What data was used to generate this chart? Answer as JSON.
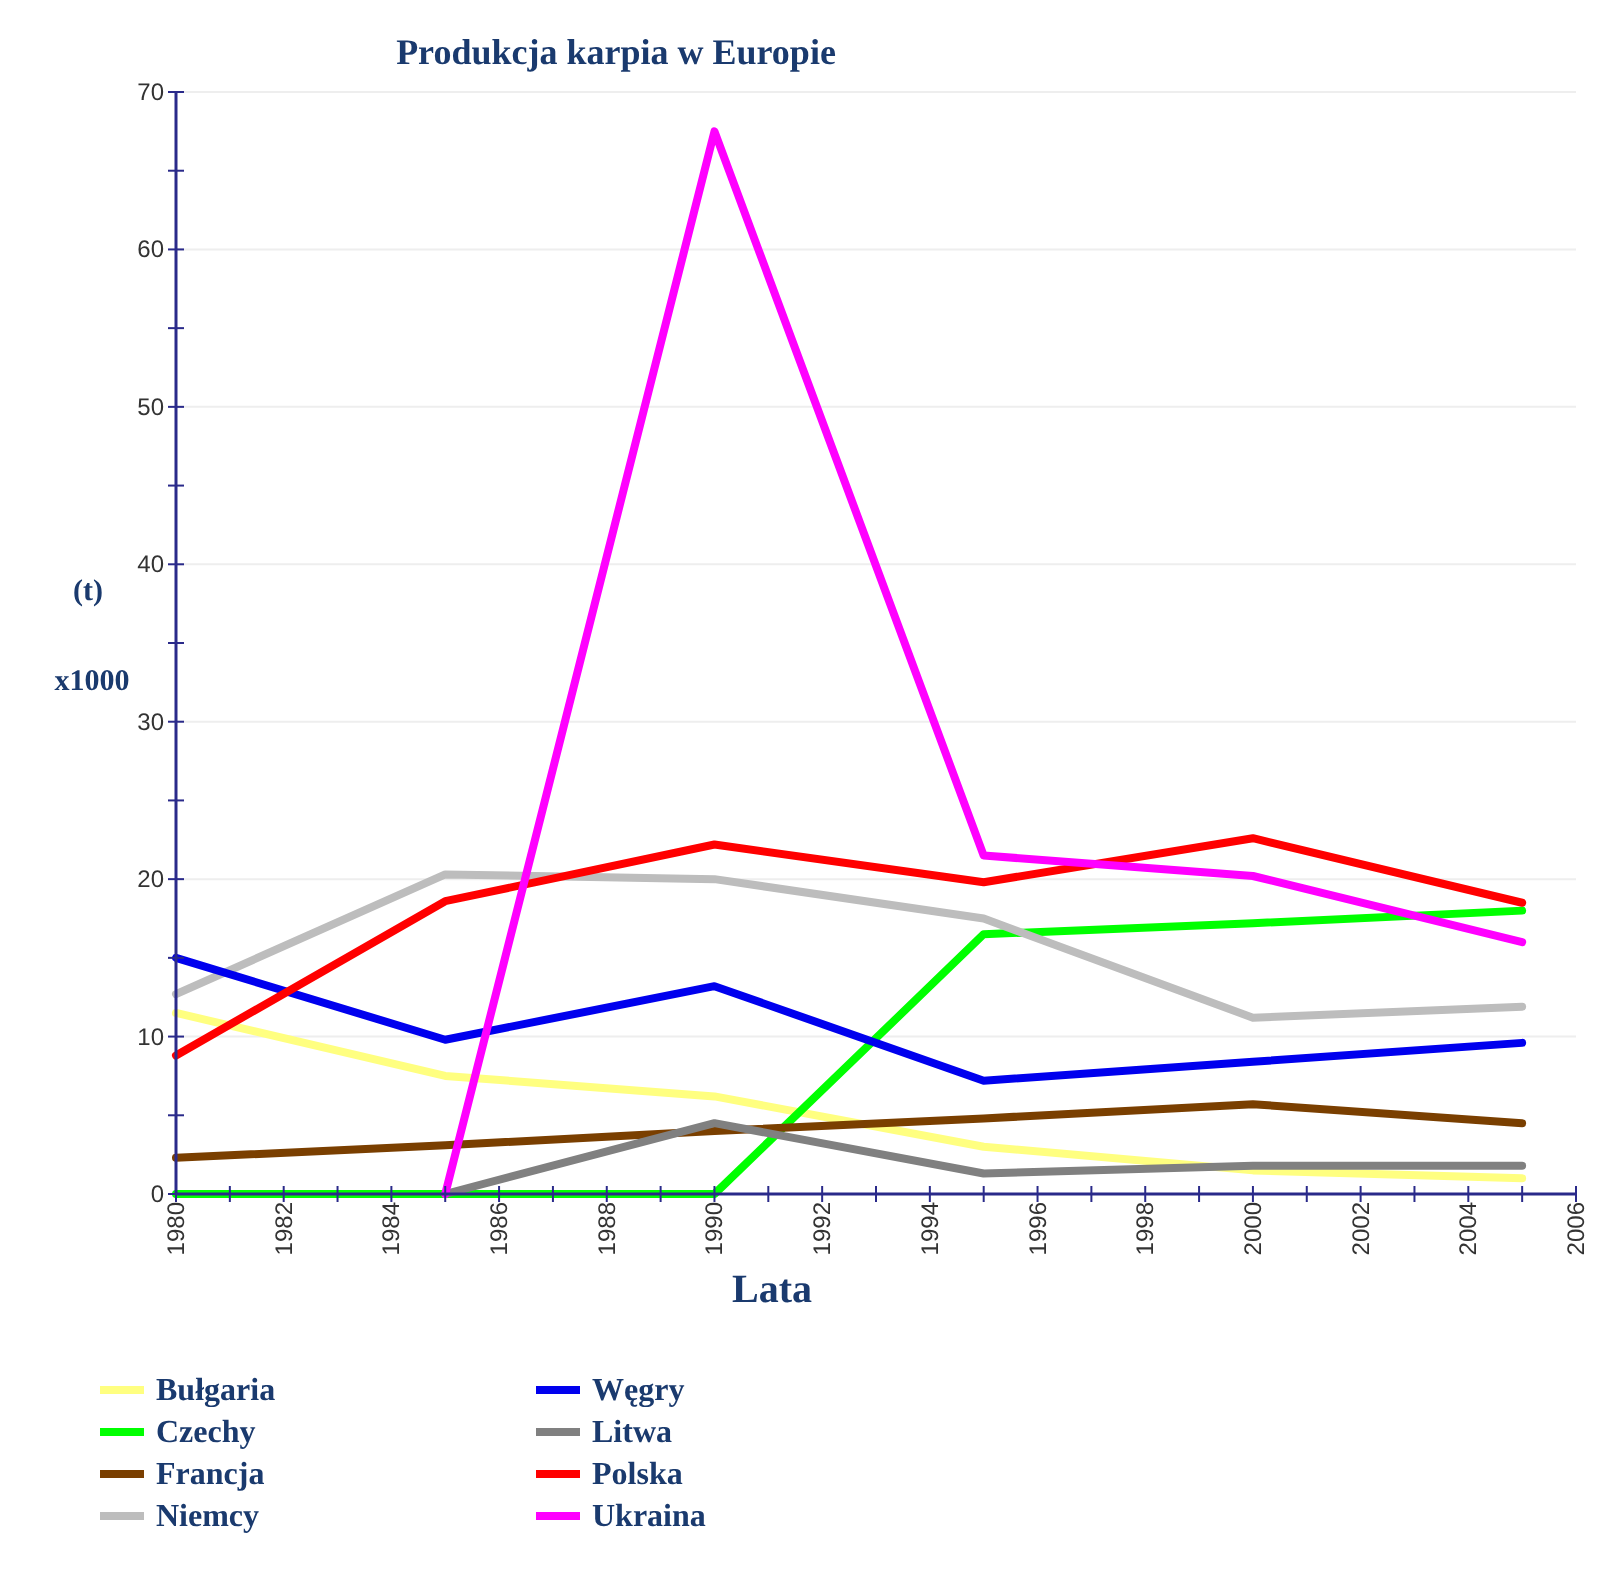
{
  "chart_data": {
    "type": "line",
    "title": "Produkcja karpia w Europie",
    "xlabel": "Lata",
    "ylabel": "(t)",
    "annotations": [
      "x1000"
    ],
    "x": [
      1980,
      1985,
      1990,
      1995,
      2000,
      2005
    ],
    "xlim": [
      1980,
      2006
    ],
    "xticks": [
      1980,
      {
        "value": 1981,
        "label": null
      },
      1982,
      {
        "value": 1983,
        "label": null
      },
      1984,
      {
        "value": 1985,
        "label": null
      },
      1986,
      {
        "value": 1987,
        "label": null
      },
      1988,
      {
        "value": 1989,
        "label": null
      },
      1990,
      {
        "value": 1991,
        "label": null
      },
      1992,
      {
        "value": 1993,
        "label": null
      },
      1994,
      {
        "value": 1995,
        "label": null
      },
      1996,
      {
        "value": 1997,
        "label": null
      },
      1998,
      {
        "value": 1999,
        "label": null
      },
      2000,
      {
        "value": 2001,
        "label": null
      },
      2002,
      {
        "value": 2003,
        "label": null
      },
      2004,
      {
        "value": 2005,
        "label": null
      },
      2006
    ],
    "ylim": [
      0,
      70
    ],
    "yticks": [
      0,
      {
        "value": 5,
        "label": null
      },
      10,
      {
        "value": 15,
        "label": null
      },
      20,
      {
        "value": 25,
        "label": null
      },
      30,
      {
        "value": 35,
        "label": null
      },
      40,
      {
        "value": 45,
        "label": null
      },
      50,
      {
        "value": 55,
        "label": null
      },
      60,
      {
        "value": 65,
        "label": null
      },
      70
    ],
    "grid": "y",
    "legend": "bottom",
    "marker": "none",
    "line_style": "solid",
    "series": [
      {
        "name": "Bułgaria",
        "color": "#ffff80",
        "values": [
          11.5,
          7.5,
          6.2,
          3,
          1.5,
          1
        ]
      },
      {
        "name": "Czechy",
        "color": "#00ff00",
        "values": [
          0,
          0,
          0,
          16.5,
          17.2,
          18
        ]
      },
      {
        "name": "Francja",
        "color": "#7a3f00",
        "values": [
          2.3,
          3.1,
          4,
          4.8,
          5.7,
          4.5
        ]
      },
      {
        "name": "Niemcy",
        "color": "#bdbdbd",
        "values": [
          12.7,
          20.3,
          20,
          17.5,
          11.2,
          11.9
        ]
      },
      {
        "name": "Węgry",
        "color": "#0000ee",
        "values": [
          15,
          9.8,
          13.2,
          7.2,
          8.4,
          9.6
        ]
      },
      {
        "name": "Litwa",
        "color": "#808080",
        "values": [
          null,
          0,
          4.5,
          1.3,
          1.8,
          1.8
        ]
      },
      {
        "name": "Polska",
        "color": "#ff0000",
        "values": [
          8.8,
          18.6,
          22.2,
          19.8,
          22.6,
          18.5
        ]
      },
      {
        "name": "Ukraina",
        "color": "#ff00ff",
        "values": [
          null,
          0,
          67.5,
          21.5,
          20.2,
          16
        ]
      }
    ]
  }
}
